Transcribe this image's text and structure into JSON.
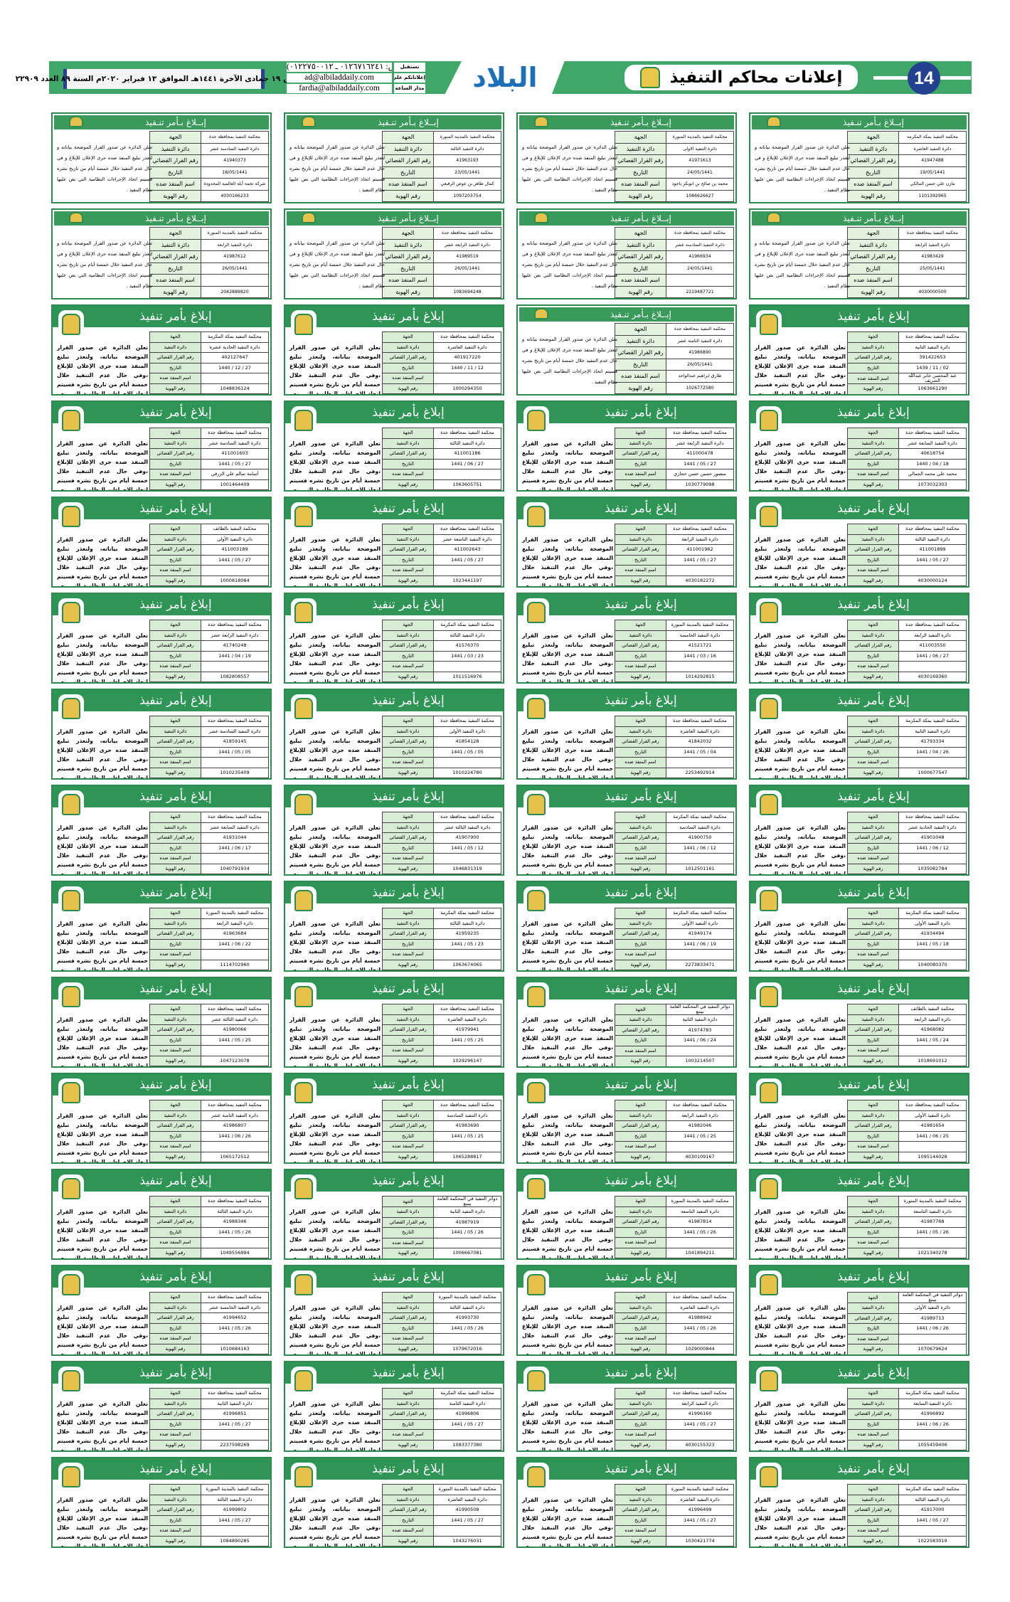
{
  "header": {
    "section_title": "إعلانات محاكم التنفيذ",
    "page_number": "14",
    "brand": "البلاد",
    "date_line": "الخميس ١٩ جمادى الآخرة ١٤٤١هـ الموافق ١٣ فبراير ٢٠٢٠م السنة ٨٩ العدد ٢٢٩٠٩",
    "contact_labels": [
      "تستقبل",
      "إعلاناتكم على",
      "مدار الساعة"
    ],
    "contact_values": [
      "(فاكس: ٠١٢٦٧١٦٢٤١ ـ ٠١٢٢٧٥٠٠١٢)",
      "ad@albiladdaily.com",
      "fardia@albiladdaily.com"
    ]
  },
  "notice_labels": {
    "title_a": "إبــلاغ بـأمر تنـفيذ",
    "title_b": "إبلاغ بأمر تنفيذ",
    "court": "الجهة",
    "circle": "دائرة التنفيذ",
    "decision": "رقم القرار القضائي",
    "date": "التاريخ",
    "name": "اسم المنفذ ضده",
    "id": "رقم الهوية",
    "body_a": "تعلن الدائرة عن صدور القرار الموضحة بياناته و لتعذر تبليغ المنفذ ضده جرى الإعلان للإبلاغ و في حال عدم التنفيذ خلال خمسة أيام من تاريخ نشره فسيتم اتخاذ الإجراءات النظامية التي نص عليها نظام التنفيذ .",
    "body_b": "تعلن الدائرة عن صدور القرار الموضحة بياناته، ولتعذر تبليغ المنفذ ضده جرى الإعلان للإبلاغ ،وفي حال عدم التنفيذ خلال خمسة أيام من تاريخ نشره فسيتم اتخاذ الإجراءات النظامية التي نص عليها نظام التنفيذ."
  },
  "colors": {
    "green": "#2e9556",
    "label_bg": "#d9ecd5",
    "page_circle": "#23418f",
    "brand_blue": "#1d6fb8"
  },
  "notices": [
    {
      "style": "A",
      "court": "محكمة التنفيذ بمحافظة جدة",
      "circle": "دائرة التنفيذ السادسة عشر",
      "decision": "41940373",
      "date": "18/05/1441",
      "name": "شركة نجمة أبلة العالمية المحدودة",
      "id": "4030166233"
    },
    {
      "style": "A",
      "court": "محكمة التنفيذ بالمدينة المنورة",
      "circle": "دائرة التنفيذ الثالثة",
      "decision": "41963193",
      "date": "23/05/1441",
      "name": "كمال طاهر بن عوض الرفيعي",
      "id": "1097203754"
    },
    {
      "style": "A",
      "court": "محكمة التنفيذ بالمدينة المنورة",
      "circle": "دائرة التنفيذ الاولى",
      "decision": "41971613",
      "date": "24/05/1441",
      "name": "محمد بن صالح بن ابوبكر باجود",
      "id": "1086626627"
    },
    {
      "style": "A",
      "court": "محكمة التنفيذ بمكة المكرمة",
      "circle": "دائرة التنفيذ العاشرة",
      "decision": "41947488",
      "date": "19/05/1441",
      "name": "مازن علي حسن المالكي",
      "id": "1101392965"
    },
    {
      "style": "A",
      "court": "محكمة التنفيذ بالمدينة المنورة",
      "circle": "دائرة التنفيذ الرابعة",
      "decision": "41987612",
      "date": "26/05/1441",
      "name": "",
      "id": "2042889820"
    },
    {
      "style": "A",
      "court": "محكمة التنفيذ بمحافظة جدة",
      "circle": "دائرة التنفيذ الرابعة عشر",
      "decision": "41989519",
      "date": "26/05/1441",
      "name": "",
      "id": "1083694248"
    },
    {
      "style": "A",
      "court": "محكمة التنفيذ بمحافظة جدة",
      "circle": "دائرة التنفيذ السادسة عشر",
      "decision": "41966934",
      "date": "24/05/1441",
      "name": "",
      "id": "2219487721"
    },
    {
      "style": "A",
      "court": "محكمة التنفيذ بمحافظة جدة",
      "circle": "دائرة التنفيذ الرابعة",
      "decision": "41983429",
      "date": "25/05/1441",
      "name": "",
      "id": "4030000500"
    },
    {
      "style": "B",
      "court": "محكمة التنفيذ بمكة المكرمة",
      "circle": "دائرة التنفيذ الحادية عشرة",
      "decision": "402127647",
      "date": "27 / 12 / 1440",
      "name": "",
      "id": "1048836124"
    },
    {
      "style": "B",
      "court": "محكمة التنفيذ بمحافظة جدة",
      "circle": "دائرة التنفيذ العاشرة",
      "decision": "401917220",
      "date": "12 / 11 / 1440",
      "name": "",
      "id": "1000294350"
    },
    {
      "style": "A",
      "court": "محكمة التنفيذ بمحافظة جدة",
      "circle": "دائرة التنفيذ الثامنة عشر",
      "decision": "41986890",
      "date": "26/05/1441",
      "name": "طارق ابراهيم عبدالواحد",
      "id": "1026772580"
    },
    {
      "style": "B",
      "court": "محكمة التنفيذ بمحافظة جدة",
      "circle": "دائرة التنفيذ الثانية",
      "decision": "391422653",
      "date": "02 / 11 / 1439",
      "name": "عبد المحسن جابر عبدالله الشريف",
      "id": "1063661290"
    },
    {
      "style": "B",
      "court": "محكمة التنفيذ بمحافظة جدة",
      "circle": "دائرة التنفيذ السادسة عشر",
      "decision": "411001603",
      "date": "27 / 05 / 1441",
      "name": "أسامة سالم علي الزرقي",
      "id": "1001464409"
    },
    {
      "style": "B",
      "court": "محكمة التنفيذ بمحافظة جدة",
      "circle": "دائرة التنفيذ الثالثة",
      "decision": "411001186",
      "date": "27 / 06 / 1441",
      "name": "",
      "id": "1063605751"
    },
    {
      "style": "B",
      "court": "محكمة التنفيذ بمحافظة جدة",
      "circle": "دائرة التنفيذ الرابعة عشر",
      "decision": "411000478",
      "date": "27 / 05 / 1441",
      "name": "منصور حسين حسن حجازي",
      "id": "1030779098"
    },
    {
      "style": "B",
      "court": "محكمة التنفيذ بمحافظة جدة",
      "circle": "دائرة التنفيذ السابعة عشر",
      "decision": "40618754",
      "date": "18 / 04 / 1440",
      "name": "محمد علي محمد الجمالي",
      "id": "1073032303"
    },
    {
      "style": "B",
      "court": "محكمة التنفيذ بالطائف",
      "circle": "دائرة التنفيذ الأولى",
      "decision": "411003189",
      "date": "27 / 05 / 1441",
      "name": "",
      "id": "1000818084"
    },
    {
      "style": "B",
      "court": "محكمة التنفيذ بمحافظة جدة",
      "circle": "دائرة التنفيذ التاسعة عشر",
      "decision": "411002643",
      "date": "27 / 05 / 1441",
      "name": "",
      "id": "1023441197"
    },
    {
      "style": "B",
      "court": "محكمة التنفيذ بمحافظة جدة",
      "circle": "دائرة التنفيذ الرابعة",
      "decision": "411001962",
      "date": "27 / 05 / 1441",
      "name": "",
      "id": "4030182272"
    },
    {
      "style": "B",
      "court": "محكمة التنفيذ بمحافظة جدة",
      "circle": "دائرة التنفيذ الثالثة",
      "decision": "411001899",
      "date": "27 / 05 / 1441",
      "name": "",
      "id": "4030000124"
    },
    {
      "style": "B",
      "court": "محكمة التنفيذ بمحافظة جدة",
      "circle": "دائرة التنفيذ الرابعة عشر",
      "decision": "41740248",
      "date": "19 / 04 / 1441",
      "name": "",
      "id": "1082808557"
    },
    {
      "style": "B",
      "court": "محكمة التنفيذ بمكة المكرمة",
      "circle": "دائرة التنفيذ الثالثة",
      "decision": "41576370",
      "date": "23 / 03 / 1441",
      "name": "",
      "id": "1011516976"
    },
    {
      "style": "B",
      "court": "محكمة التنفيذ بالمدينة المنورة",
      "circle": "دائرة التنفيذ الخامسة",
      "decision": "41521721",
      "date": "16 / 03 / 1441",
      "name": "",
      "id": "1014292815"
    },
    {
      "style": "B",
      "court": "محكمة التنفيذ بمحافظة جدة",
      "circle": "دائرة التنفيذ الرابعة",
      "decision": "411003550",
      "date": "27 / 06 / 1441",
      "name": "",
      "id": "4030169360"
    },
    {
      "style": "B",
      "court": "محكمة التنفيذ بمحافظة جدة",
      "circle": "دائرة التنفيذ السادسة عشر",
      "decision": "41859145",
      "date": "05 / 05 / 1441",
      "name": "",
      "id": "1010235409"
    },
    {
      "style": "B",
      "court": "محكمة التنفيذ بمحافظة جدة",
      "circle": "دائرة التنفيذ الأولى",
      "decision": "41854128",
      "date": "05 / 05 / 1441",
      "name": "",
      "id": "1010224780"
    },
    {
      "style": "B",
      "court": "محكمة التنفيذ بمحافظة جدة",
      "circle": "دائرة التنفيذ العاشرة",
      "decision": "41842032",
      "date": "04 / 05 / 1441",
      "name": "",
      "id": "2253492914"
    },
    {
      "style": "B",
      "court": "محكمة التنفيذ بمكة المكرمة",
      "circle": "دائرة التنفيذ الثانية",
      "decision": "41793334",
      "date": "26 / 04 / 1441",
      "name": "",
      "id": "1000677547"
    },
    {
      "style": "B",
      "court": "محكمة التنفيذ بمحافظة جدة",
      "circle": "دائرة التنفيذ السابعة عشر",
      "decision": "41931044",
      "date": "17 / 06 / 1441",
      "name": "",
      "id": "1040791934"
    },
    {
      "style": "B",
      "court": "محكمة التنفيذ بمحافظة جدة",
      "circle": "دائرة التنفيذ الثالثة عشر",
      "decision": "41907900",
      "date": "12 / 05 / 1441",
      "name": "",
      "id": "1046831319"
    },
    {
      "style": "B",
      "court": "محكمة التنفيذ بمكة المكرمة",
      "circle": "دائرة التنفيذ السادسة",
      "decision": "41900750",
      "date": "12 / 06 / 1441",
      "name": "",
      "id": "1012501161"
    },
    {
      "style": "B",
      "court": "محكمة التنفيذ بمحافظة جدة",
      "circle": "دائرة التنفيذ الحادية عشر",
      "decision": "41901048",
      "date": "12 / 06 / 1441",
      "name": "",
      "id": "1035082784"
    },
    {
      "style": "B",
      "court": "محكمة التنفيذ بالمدينة المنورة",
      "circle": "دائرة التنفيذ الرابعة",
      "decision": "41963684",
      "date": "22 / 06 / 1441",
      "name": "",
      "id": "1114702960"
    },
    {
      "style": "B",
      "court": "محكمة التنفيذ بمكة المكرمة",
      "circle": "دائرة التنفيذ الثالثة",
      "decision": "41959235",
      "date": "23 / 05 / 1441",
      "name": "",
      "id": "1063674065"
    },
    {
      "style": "B",
      "court": "محكمة التنفيذ بمكة المكرمة",
      "circle": "دائرة التنفيذ الأولى",
      "decision": "41949174",
      "date": "19 / 06 / 1441",
      "name": "",
      "id": "2273833471"
    },
    {
      "style": "B",
      "court": "محكمة التنفيذ بمكة المكرمة",
      "circle": "دائرة التنفيذ الأولى",
      "decision": "41934494",
      "date": "18 / 05 / 1441",
      "name": "",
      "id": "1040080370"
    },
    {
      "style": "B",
      "court": "محكمة التنفيذ بمحافظة جدة",
      "circle": "دائرة التنفيذ الثالثة عشر",
      "decision": "41980066",
      "date": "25 / 05 / 1441",
      "name": "",
      "id": "1047123078"
    },
    {
      "style": "B",
      "court": "محكمة التنفيذ بمحافظة جدة",
      "circle": "دائرة التنفيذ العاشرة",
      "decision": "41979941",
      "date": "25 / 05 / 1441",
      "name": "",
      "id": "1029296147"
    },
    {
      "style": "B",
      "court": "دوائر التنفيذ في المحكمة العامة بينبع",
      "circle": "دائرة التنفيذ الثانية",
      "decision": "41974783",
      "date": "24 / 06 / 1441",
      "name": "",
      "id": "1003214507"
    },
    {
      "style": "B",
      "court": "محكمة التنفيذ بالطائف",
      "circle": "دائرة التنفيذ الرابعة",
      "decision": "41968082",
      "date": "24 / 05 / 1441",
      "name": "",
      "id": "1018691012"
    },
    {
      "style": "B",
      "court": "محكمة التنفيذ بمحافظة جدة",
      "circle": "دائرة التنفيذ الثامنة عشر",
      "decision": "41986807",
      "date": "26 / 06 / 1441",
      "name": "",
      "id": "1065172512"
    },
    {
      "style": "B",
      "court": "محكمة التنفيذ بمحافظة جدة",
      "circle": "دائرة التنفيذ السادسة",
      "decision": "41983690",
      "date": "25 / 05 / 1441",
      "name": "",
      "id": "1065288817"
    },
    {
      "style": "B",
      "court": "محكمة التنفيذ بمحافظة جدة",
      "circle": "دائرة التنفيذ الرابعة",
      "decision": "41982046",
      "date": "25 / 05 / 1441",
      "name": "",
      "id": "4030109167"
    },
    {
      "style": "B",
      "court": "محكمة التنفيذ بمحافظة جدة",
      "circle": "دائرة التنفيذ الأولى",
      "decision": "41981654",
      "date": "25 / 06 / 1441",
      "name": "",
      "id": "1095144028"
    },
    {
      "style": "B",
      "court": "محكمة التنفيذ بمحافظة جدة",
      "circle": "دائرة التنفيذ الثالثة",
      "decision": "41988346",
      "date": "26 / 05 / 1441",
      "name": "",
      "id": "1049556994"
    },
    {
      "style": "B",
      "court": "دوائر التنفيذ في المحكمة العامة بينبع",
      "circle": "دائرة التنفيذ الثانية",
      "decision": "41987919",
      "date": "26 / 05 / 1441",
      "name": "",
      "id": "1006667081"
    },
    {
      "style": "B",
      "court": "محكمة التنفيذ بالمدينة المنورة",
      "circle": "دائرة التنفيذ التاسعة",
      "decision": "41987814",
      "date": "26 / 05 / 1441",
      "name": "",
      "id": "1041894211"
    },
    {
      "style": "B",
      "court": "محكمة التنفيذ بالمدينة المنورة",
      "circle": "دائرة التنفيذ التاسعة",
      "decision": "41987768",
      "date": "26 / 05 / 1441",
      "name": "",
      "id": "1021340278"
    },
    {
      "style": "B",
      "court": "محكمة التنفيذ بمحافظة جدة",
      "circle": "دائرة التنفيذ الخامسة عشر",
      "decision": "41994652",
      "date": "26 / 05 / 1441",
      "name": "",
      "id": "1010684163"
    },
    {
      "style": "B",
      "court": "محكمة التنفيذ بالمدينة المنورة",
      "circle": "دائرة التنفيذ الثالثة",
      "decision": "41993730",
      "date": "26 / 05 / 1441",
      "name": "",
      "id": "1079672016"
    },
    {
      "style": "B",
      "court": "محكمة التنفيذ بمحافظة جدة",
      "circle": "دائرة التنفيذ العاشرة",
      "decision": "41988942",
      "date": "26 / 05 / 1441",
      "name": "",
      "id": "1029000844"
    },
    {
      "style": "B",
      "court": "دوائر التنفيذ في المحكمة العامة بينبع",
      "circle": "دائرة التنفيذ الأولى",
      "decision": "41989713",
      "date": "26 / 06 / 1441",
      "name": "",
      "id": "1070679624"
    },
    {
      "style": "B",
      "court": "محكمة التنفيذ بمحافظة جدة",
      "circle": "دائرة التنفيذ الثانية",
      "decision": "41996851",
      "date": "27 / 05 / 1441",
      "name": "",
      "id": "2237598269"
    },
    {
      "style": "B",
      "court": "محكمة التنفيذ بمكة المكرمة",
      "circle": "دائرة التنفيذ الثامنة",
      "decision": "41996806",
      "date": "27 / 05 / 1441",
      "name": "",
      "id": "1083377380"
    },
    {
      "style": "B",
      "court": "محكمة التنفيذ بمحافظة جدة",
      "circle": "دائرة التنفيذ الرابعة",
      "decision": "41996160",
      "date": "27 / 05 / 1441",
      "name": "",
      "id": "4030155323"
    },
    {
      "style": "B",
      "court": "محكمة التنفيذ بمكة المكرمة",
      "circle": "دائرة التنفيذ السابعة",
      "decision": "41996892",
      "date": "26 / 06 / 1441",
      "name": "",
      "id": "1055459406"
    },
    {
      "style": "B",
      "court": "محكمة التنفيذ بالمدينة المنورة",
      "circle": "دائرة التنفيذ الثالثة",
      "decision": "41999802",
      "date": "27 / 05 / 1441",
      "name": "",
      "id": "1084890285"
    },
    {
      "style": "B",
      "court": "محكمة التنفيذ بالمدينة المنورة",
      "circle": "دائرة التنفيذ العاشرة",
      "decision": "41990508",
      "date": "27 / 05 / 1441",
      "name": "",
      "id": "1043276031"
    },
    {
      "style": "B",
      "court": "محكمة التنفيذ بالمدينة المنورة",
      "circle": "دائرة التنفيذ العاشرة",
      "decision": "41996499",
      "date": "27 / 05 / 1441",
      "name": "",
      "id": "1030421774"
    },
    {
      "style": "B",
      "court": "محكمة التنفيذ بمكة المكرمة",
      "circle": "دائرة التنفيذ الثالثة",
      "decision": "41917000",
      "date": "27 / 05 / 1441",
      "name": "",
      "id": "1022583019"
    }
  ]
}
